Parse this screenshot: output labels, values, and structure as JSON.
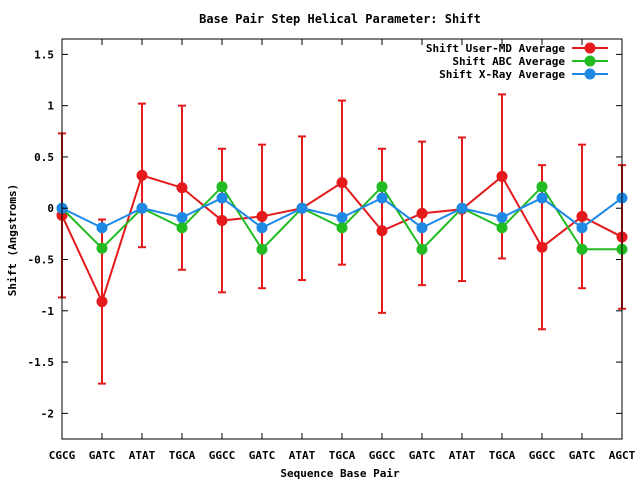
{
  "chart_data": {
    "type": "line",
    "title": "Base Pair Step Helical Parameter: Shift",
    "xlabel": "Sequence Base Pair",
    "ylabel": "Shift (Angstroms)",
    "categories": [
      "CGCG",
      "GATC",
      "ATAT",
      "TGCA",
      "GGCC",
      "GATC",
      "ATAT",
      "TGCA",
      "GGCC",
      "GATC",
      "ATAT",
      "TGCA",
      "GGCC",
      "GATC",
      "AGCT"
    ],
    "ylim": [
      -2.25,
      1.65
    ],
    "yticks": [
      -2,
      -1.5,
      -1,
      -0.5,
      0,
      0.5,
      1,
      1.5
    ],
    "ytick_labels": [
      "-2",
      "-1.5",
      "-1",
      "-0.5",
      "0",
      "0.5",
      "1",
      "1.5"
    ],
    "grid": false,
    "legend_position": "top-right",
    "series": [
      {
        "name": "Shift User-MD Average",
        "color": "#e41a1c",
        "values": [
          -0.07,
          -0.91,
          0.32,
          0.2,
          -0.12,
          -0.08,
          0.0,
          0.25,
          -0.22,
          -0.05,
          -0.01,
          0.31,
          -0.38,
          -0.08,
          -0.28
        ],
        "error": [
          0.8,
          0.8,
          0.7,
          0.8,
          0.7,
          0.7,
          0.7,
          0.8,
          0.8,
          0.7,
          0.7,
          0.8,
          0.8,
          0.7,
          0.7
        ]
      },
      {
        "name": "Shift ABC Average",
        "color": "#22bb22",
        "values": [
          0.0,
          -0.39,
          0.0,
          -0.19,
          0.21,
          -0.4,
          0.0,
          -0.19,
          0.21,
          -0.4,
          0.0,
          -0.19,
          0.21,
          -0.4,
          -0.4
        ]
      },
      {
        "name": "Shift X-Ray Average",
        "color": "#1e88e5",
        "values": [
          0.0,
          -0.19,
          0.0,
          -0.09,
          0.1,
          -0.19,
          0.0,
          -0.09,
          0.1,
          -0.19,
          0.0,
          -0.09,
          0.1,
          -0.19,
          0.1
        ]
      }
    ]
  }
}
